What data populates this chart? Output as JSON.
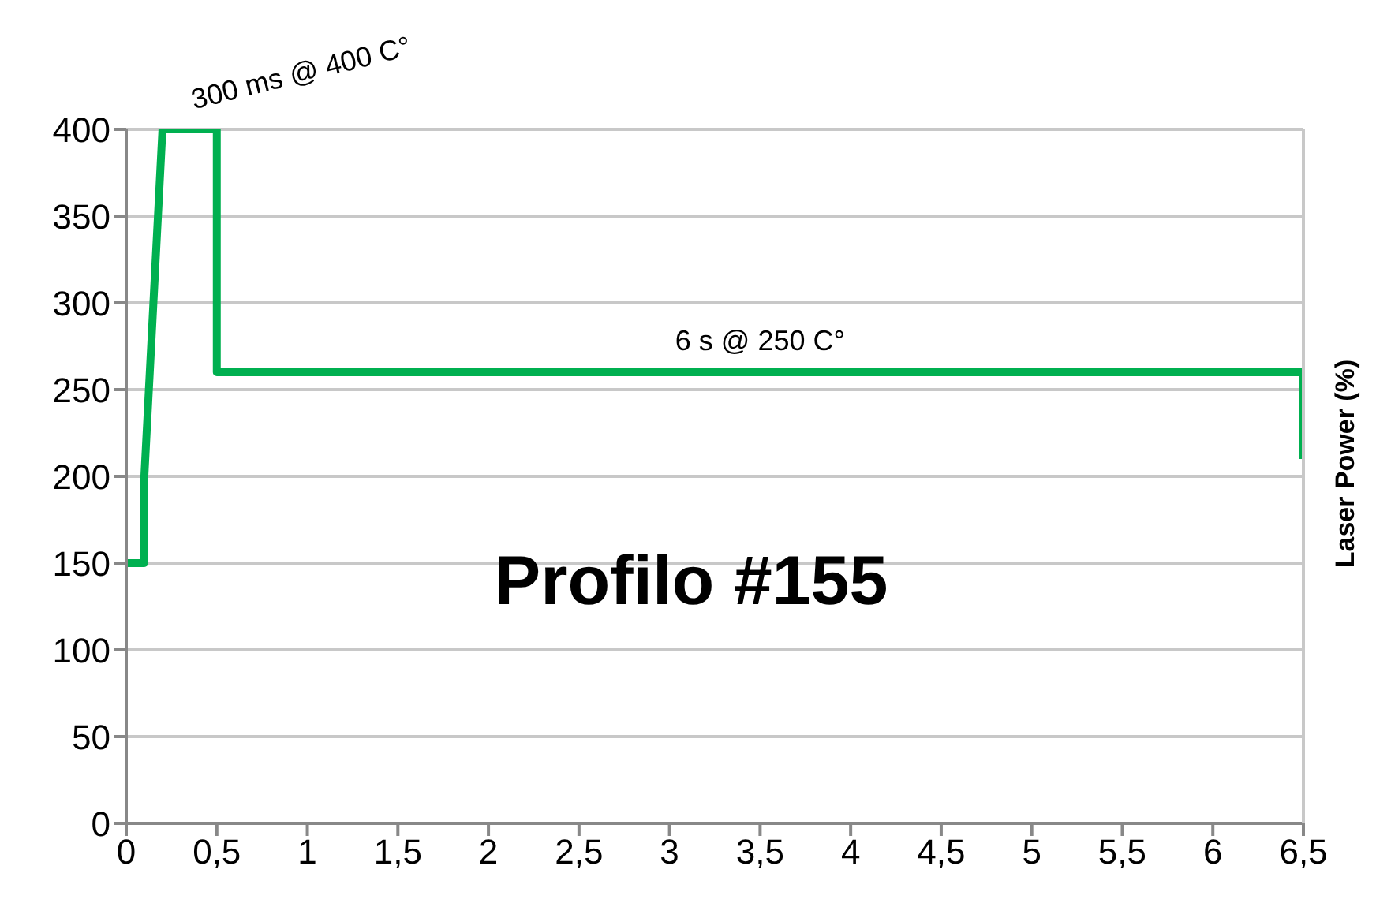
{
  "chart_data": {
    "type": "line",
    "title": "Profilo #155",
    "ylabel": "Laser Power (%)",
    "x": [
      0,
      0.1,
      0.1,
      0.2,
      0.5,
      0.5,
      6.5,
      6.5
    ],
    "series": [
      {
        "color": "#00b050",
        "values": [
          150,
          150,
          200,
          400,
          400,
          260,
          260,
          210
        ]
      }
    ],
    "xlim": [
      0,
      6.5
    ],
    "xticks": [
      0,
      {
        "value": 0.5,
        "label": "0,5"
      },
      1,
      {
        "value": 1.5,
        "label": "1,5"
      },
      2,
      {
        "value": 2.5,
        "label": "2,5"
      },
      3,
      {
        "value": 3.5,
        "label": "3,5"
      },
      4,
      {
        "value": 4.5,
        "label": "4,5"
      },
      5,
      {
        "value": 5.5,
        "label": "5,5"
      },
      6,
      {
        "value": 6.5,
        "label": "6,5"
      }
    ],
    "ylim": [
      0,
      400
    ],
    "yticks": [
      0,
      50,
      100,
      150,
      200,
      250,
      300,
      350,
      400
    ],
    "grid": "y",
    "marker": "none",
    "line_style": "solid",
    "annotations": [
      {
        "text": "300 ms @ 400 C°",
        "x": 0.35,
        "y": 400
      },
      {
        "text": "6 s @ 250 C°",
        "x": 3.5,
        "y": 260
      }
    ]
  }
}
